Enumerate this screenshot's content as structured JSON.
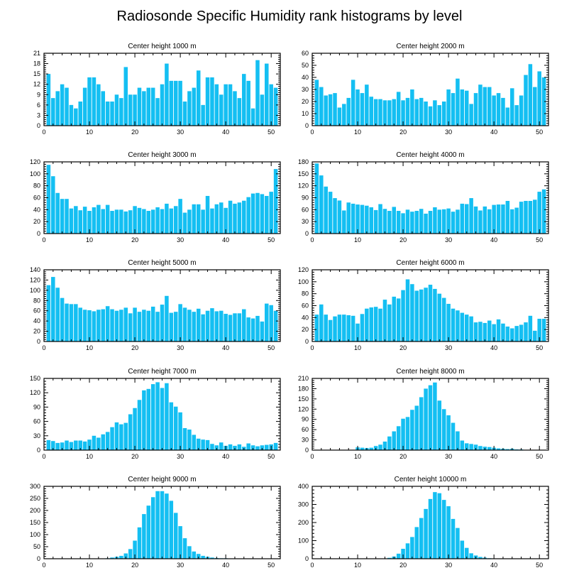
{
  "title": "Radiosonde Specific Humidity rank histograms by level",
  "colors": {
    "bar": "#14bff2",
    "frame": "#000000",
    "background": "#ffffff"
  },
  "chart_data": [
    {
      "type": "bar",
      "title": "Center height 1000 m",
      "xlim": [
        0,
        52
      ],
      "ylim": [
        0,
        21
      ],
      "xticks": [
        0,
        10,
        20,
        30,
        40,
        50
      ],
      "yticks": [
        0,
        3,
        6,
        9,
        12,
        15,
        18,
        21
      ],
      "ranks": [
        1,
        2,
        3,
        4,
        5,
        6,
        7,
        8,
        9,
        10,
        11,
        12,
        13,
        14,
        15,
        16,
        17,
        18,
        19,
        20,
        21,
        22,
        23,
        24,
        25,
        26,
        27,
        28,
        29,
        30,
        31,
        32,
        33,
        34,
        35,
        36,
        37,
        38,
        39,
        40,
        41,
        42,
        43,
        44,
        45,
        46,
        47,
        48,
        49,
        50,
        51
      ],
      "values": [
        15,
        8,
        10,
        12,
        11,
        6,
        5,
        7,
        11,
        14,
        14,
        12,
        10,
        7,
        7,
        9,
        8,
        17,
        9,
        9,
        11,
        10,
        11,
        11,
        8,
        12,
        18,
        13,
        13,
        13,
        7,
        10,
        11,
        16,
        6,
        14,
        14,
        12,
        9,
        12,
        12,
        10,
        8,
        15,
        13,
        5,
        19,
        9,
        18,
        12,
        11
      ]
    },
    {
      "type": "bar",
      "title": "Center height 2000 m",
      "xlim": [
        0,
        52
      ],
      "ylim": [
        0,
        60
      ],
      "xticks": [
        0,
        10,
        20,
        30,
        40,
        50
      ],
      "yticks": [
        0,
        10,
        20,
        30,
        40,
        50,
        60
      ],
      "ranks": [
        1,
        2,
        3,
        4,
        5,
        6,
        7,
        8,
        9,
        10,
        11,
        12,
        13,
        14,
        15,
        16,
        17,
        18,
        19,
        20,
        21,
        22,
        23,
        24,
        25,
        26,
        27,
        28,
        29,
        30,
        31,
        32,
        33,
        34,
        35,
        36,
        37,
        38,
        39,
        40,
        41,
        42,
        43,
        44,
        45,
        46,
        47,
        48,
        49,
        50,
        51
      ],
      "values": [
        38,
        32,
        25,
        26,
        27,
        15,
        18,
        23,
        38,
        30,
        27,
        34,
        24,
        22,
        22,
        21,
        21,
        22,
        28,
        21,
        23,
        30,
        22,
        23,
        20,
        16,
        21,
        17,
        20,
        30,
        27,
        39,
        30,
        29,
        18,
        27,
        34,
        32,
        32,
        25,
        27,
        23,
        15,
        31,
        17,
        25,
        42,
        51,
        32,
        45,
        40
      ]
    },
    {
      "type": "bar",
      "title": "Center height 3000 m",
      "xlim": [
        0,
        52
      ],
      "ylim": [
        0,
        120
      ],
      "xticks": [
        0,
        10,
        20,
        30,
        40,
        50
      ],
      "yticks": [
        0,
        20,
        40,
        60,
        80,
        100,
        120
      ],
      "ranks": [
        1,
        2,
        3,
        4,
        5,
        6,
        7,
        8,
        9,
        10,
        11,
        12,
        13,
        14,
        15,
        16,
        17,
        18,
        19,
        20,
        21,
        22,
        23,
        24,
        25,
        26,
        27,
        28,
        29,
        30,
        31,
        32,
        33,
        34,
        35,
        36,
        37,
        38,
        39,
        40,
        41,
        42,
        43,
        44,
        45,
        46,
        47,
        48,
        49,
        50,
        51
      ],
      "values": [
        115,
        96,
        68,
        58,
        58,
        42,
        46,
        39,
        45,
        38,
        44,
        48,
        41,
        48,
        38,
        40,
        40,
        37,
        39,
        46,
        43,
        41,
        38,
        40,
        44,
        41,
        50,
        42,
        46,
        58,
        35,
        40,
        49,
        49,
        40,
        63,
        42,
        49,
        52,
        43,
        55,
        50,
        52,
        55,
        61,
        67,
        68,
        66,
        63,
        70,
        108
      ]
    },
    {
      "type": "bar",
      "title": "Center height 4000 m",
      "xlim": [
        0,
        52
      ],
      "ylim": [
        0,
        180
      ],
      "xticks": [
        0,
        10,
        20,
        30,
        40,
        50
      ],
      "yticks": [
        0,
        30,
        60,
        90,
        120,
        150,
        180
      ],
      "ranks": [
        1,
        2,
        3,
        4,
        5,
        6,
        7,
        8,
        9,
        10,
        11,
        12,
        13,
        14,
        15,
        16,
        17,
        18,
        19,
        20,
        21,
        22,
        23,
        24,
        25,
        26,
        27,
        28,
        29,
        30,
        31,
        32,
        33,
        34,
        35,
        36,
        37,
        38,
        39,
        40,
        41,
        42,
        43,
        44,
        45,
        46,
        47,
        48,
        49,
        50,
        51
      ],
      "values": [
        176,
        146,
        118,
        105,
        89,
        83,
        58,
        78,
        75,
        73,
        72,
        70,
        66,
        59,
        74,
        62,
        57,
        67,
        57,
        51,
        60,
        55,
        57,
        62,
        50,
        57,
        66,
        60,
        61,
        63,
        55,
        60,
        75,
        74,
        89,
        68,
        58,
        68,
        61,
        72,
        73,
        73,
        82,
        61,
        65,
        80,
        82,
        82,
        85,
        105,
        111
      ]
    },
    {
      "type": "bar",
      "title": "Center height 5000 m",
      "xlim": [
        0,
        52
      ],
      "ylim": [
        0,
        140
      ],
      "xticks": [
        0,
        10,
        20,
        30,
        40,
        50
      ],
      "yticks": [
        0,
        20,
        40,
        60,
        80,
        100,
        120,
        140
      ],
      "ranks": [
        1,
        2,
        3,
        4,
        5,
        6,
        7,
        8,
        9,
        10,
        11,
        12,
        13,
        14,
        15,
        16,
        17,
        18,
        19,
        20,
        21,
        22,
        23,
        24,
        25,
        26,
        27,
        28,
        29,
        30,
        31,
        32,
        33,
        34,
        35,
        36,
        37,
        38,
        39,
        40,
        41,
        42,
        43,
        44,
        45,
        46,
        47,
        48,
        49,
        50,
        51
      ],
      "values": [
        110,
        126,
        105,
        85,
        74,
        73,
        73,
        66,
        62,
        61,
        59,
        62,
        63,
        69,
        63,
        60,
        62,
        66,
        55,
        66,
        58,
        62,
        60,
        68,
        58,
        72,
        89,
        56,
        58,
        73,
        66,
        62,
        58,
        64,
        53,
        60,
        65,
        59,
        60,
        54,
        52,
        55,
        55,
        63,
        47,
        45,
        50,
        39,
        74,
        71,
        60
      ]
    },
    {
      "type": "bar",
      "title": "Center height 6000 m",
      "xlim": [
        0,
        52
      ],
      "ylim": [
        0,
        120
      ],
      "xticks": [
        0,
        10,
        20,
        30,
        40,
        50
      ],
      "yticks": [
        0,
        20,
        40,
        60,
        80,
        100,
        120
      ],
      "ranks": [
        1,
        2,
        3,
        4,
        5,
        6,
        7,
        8,
        9,
        10,
        11,
        12,
        13,
        14,
        15,
        16,
        17,
        18,
        19,
        20,
        21,
        22,
        23,
        24,
        25,
        26,
        27,
        28,
        29,
        30,
        31,
        32,
        33,
        34,
        35,
        36,
        37,
        38,
        39,
        40,
        41,
        42,
        43,
        44,
        45,
        46,
        47,
        48,
        49,
        50,
        51
      ],
      "values": [
        45,
        62,
        45,
        36,
        42,
        45,
        45,
        44,
        43,
        30,
        46,
        55,
        57,
        58,
        55,
        70,
        62,
        75,
        72,
        86,
        104,
        96,
        85,
        87,
        90,
        95,
        88,
        80,
        73,
        63,
        55,
        52,
        48,
        45,
        42,
        32,
        33,
        31,
        35,
        29,
        37,
        30,
        25,
        22,
        26,
        28,
        32,
        43,
        18,
        38,
        38
      ]
    },
    {
      "type": "bar",
      "title": "Center height 7000 m",
      "xlim": [
        0,
        52
      ],
      "ylim": [
        0,
        150
      ],
      "xticks": [
        0,
        10,
        20,
        30,
        40,
        50
      ],
      "yticks": [
        0,
        30,
        60,
        90,
        120,
        150
      ],
      "ranks": [
        1,
        2,
        3,
        4,
        5,
        6,
        7,
        8,
        9,
        10,
        11,
        12,
        13,
        14,
        15,
        16,
        17,
        18,
        19,
        20,
        21,
        22,
        23,
        24,
        25,
        26,
        27,
        28,
        29,
        30,
        31,
        32,
        33,
        34,
        35,
        36,
        37,
        38,
        39,
        40,
        41,
        42,
        43,
        44,
        45,
        46,
        47,
        48,
        49,
        50,
        51
      ],
      "values": [
        21,
        19,
        15,
        16,
        20,
        17,
        20,
        20,
        18,
        22,
        30,
        26,
        33,
        38,
        48,
        58,
        54,
        57,
        75,
        88,
        105,
        125,
        128,
        138,
        142,
        130,
        140,
        100,
        91,
        79,
        46,
        43,
        32,
        24,
        22,
        21,
        13,
        10,
        16,
        9,
        12,
        9,
        12,
        7,
        14,
        10,
        8,
        10,
        11,
        12,
        15
      ]
    },
    {
      "type": "bar",
      "title": "Center height 8000 m",
      "xlim": [
        0,
        52
      ],
      "ylim": [
        0,
        210
      ],
      "xticks": [
        0,
        10,
        20,
        30,
        40,
        50
      ],
      "yticks": [
        0,
        30,
        60,
        90,
        120,
        150,
        180,
        210
      ],
      "ranks": [
        1,
        2,
        3,
        4,
        5,
        6,
        7,
        8,
        9,
        10,
        11,
        12,
        13,
        14,
        15,
        16,
        17,
        18,
        19,
        20,
        21,
        22,
        23,
        24,
        25,
        26,
        27,
        28,
        29,
        30,
        31,
        32,
        33,
        34,
        35,
        36,
        37,
        38,
        39,
        40,
        41,
        42,
        43,
        44,
        45,
        46,
        47,
        48,
        49,
        50,
        51
      ],
      "values": [
        0,
        0,
        0,
        0,
        0,
        0,
        0,
        0,
        0,
        8,
        7,
        6,
        7,
        12,
        16,
        25,
        40,
        55,
        70,
        92,
        97,
        118,
        130,
        155,
        180,
        190,
        198,
        145,
        120,
        102,
        80,
        55,
        28,
        20,
        18,
        16,
        12,
        10,
        9,
        7,
        5,
        4,
        3,
        4,
        2,
        2,
        1,
        1,
        1,
        1,
        1
      ]
    },
    {
      "type": "bar",
      "title": "Center height 9000 m",
      "xlim": [
        0,
        52
      ],
      "ylim": [
        0,
        300
      ],
      "xticks": [
        0,
        10,
        20,
        30,
        40,
        50
      ],
      "yticks": [
        0,
        50,
        100,
        150,
        200,
        250,
        300
      ],
      "ranks": [
        1,
        2,
        3,
        4,
        5,
        6,
        7,
        8,
        9,
        10,
        11,
        12,
        13,
        14,
        15,
        16,
        17,
        18,
        19,
        20,
        21,
        22,
        23,
        24,
        25,
        26,
        27,
        28,
        29,
        30,
        31,
        32,
        33,
        34,
        35,
        36,
        37,
        38,
        39,
        40,
        41,
        42,
        43,
        44,
        45,
        46,
        47,
        48,
        49,
        50,
        51
      ],
      "values": [
        0,
        0,
        0,
        0,
        0,
        0,
        0,
        0,
        0,
        0,
        0,
        0,
        0,
        2,
        5,
        8,
        12,
        22,
        40,
        75,
        130,
        185,
        220,
        255,
        280,
        280,
        270,
        240,
        190,
        135,
        85,
        52,
        30,
        20,
        12,
        8,
        5,
        3,
        2,
        2,
        1,
        1,
        0,
        0,
        0,
        0,
        0,
        0,
        0,
        0,
        0
      ]
    },
    {
      "type": "bar",
      "title": "Center height 10000 m",
      "xlim": [
        0,
        52
      ],
      "ylim": [
        0,
        400
      ],
      "xticks": [
        0,
        10,
        20,
        30,
        40,
        50
      ],
      "yticks": [
        0,
        100,
        200,
        300,
        400
      ],
      "ranks": [
        1,
        2,
        3,
        4,
        5,
        6,
        7,
        8,
        9,
        10,
        11,
        12,
        13,
        14,
        15,
        16,
        17,
        18,
        19,
        20,
        21,
        22,
        23,
        24,
        25,
        26,
        27,
        28,
        29,
        30,
        31,
        32,
        33,
        34,
        35,
        36,
        37,
        38,
        39,
        40,
        41,
        42,
        43,
        44,
        45,
        46,
        47,
        48,
        49,
        50,
        51
      ],
      "values": [
        0,
        0,
        0,
        0,
        0,
        0,
        0,
        0,
        0,
        0,
        0,
        0,
        0,
        0,
        0,
        2,
        5,
        12,
        28,
        55,
        85,
        120,
        175,
        225,
        275,
        330,
        368,
        362,
        325,
        290,
        220,
        170,
        100,
        60,
        30,
        18,
        10,
        6,
        3,
        2,
        1,
        1,
        0,
        0,
        0,
        0,
        0,
        0,
        0,
        0,
        0
      ]
    }
  ]
}
